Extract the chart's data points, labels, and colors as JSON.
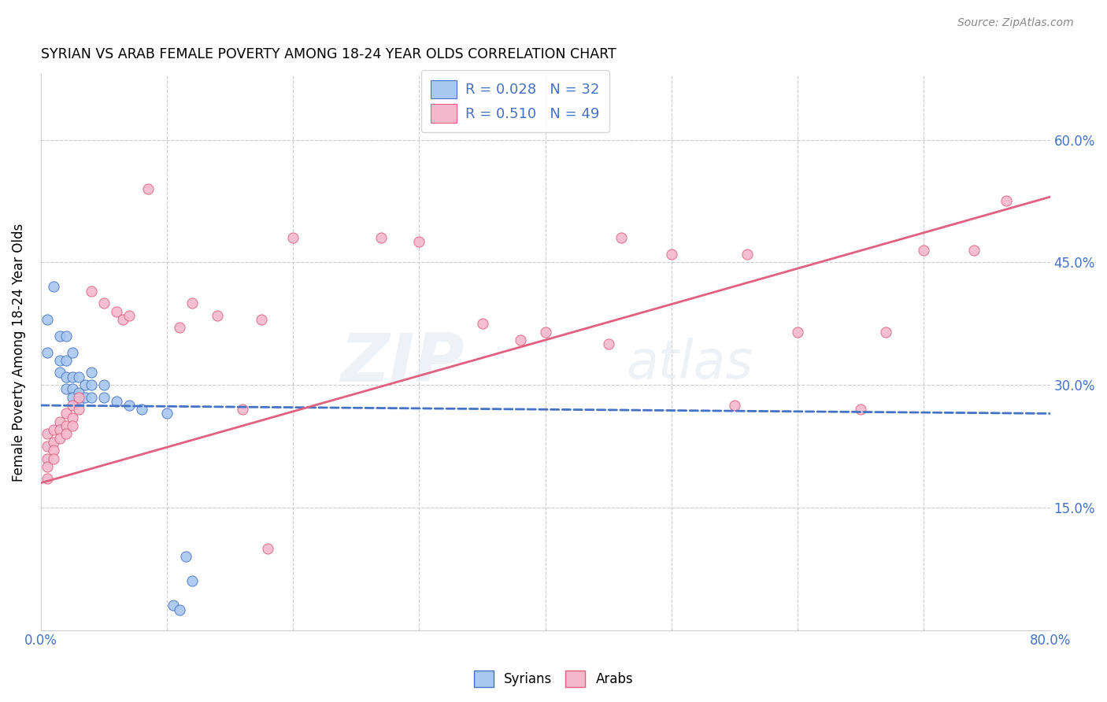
{
  "title": "SYRIAN VS ARAB FEMALE POVERTY AMONG 18-24 YEAR OLDS CORRELATION CHART",
  "source": "Source: ZipAtlas.com",
  "ylabel_label": "Female Poverty Among 18-24 Year Olds",
  "syrian_color": "#a8c8f0",
  "arab_color": "#f4b8cc",
  "syrian_line_color": "#4472c4",
  "arab_line_color": "#e06080",
  "watermark_top": "ZIP",
  "watermark_bot": "atlas",
  "syrians": [
    [
      0.5,
      38.0
    ],
    [
      0.5,
      34.0
    ],
    [
      1.0,
      42.0
    ],
    [
      1.5,
      36.0
    ],
    [
      1.5,
      33.0
    ],
    [
      1.5,
      31.5
    ],
    [
      2.0,
      36.0
    ],
    [
      2.0,
      33.0
    ],
    [
      2.0,
      31.0
    ],
    [
      2.0,
      29.5
    ],
    [
      2.5,
      34.0
    ],
    [
      2.5,
      31.0
    ],
    [
      2.5,
      29.5
    ],
    [
      2.5,
      28.5
    ],
    [
      3.0,
      31.0
    ],
    [
      3.0,
      29.0
    ],
    [
      3.0,
      28.0
    ],
    [
      3.5,
      30.0
    ],
    [
      3.5,
      28.5
    ],
    [
      4.0,
      31.5
    ],
    [
      4.0,
      30.0
    ],
    [
      4.0,
      28.5
    ],
    [
      5.0,
      30.0
    ],
    [
      5.0,
      28.5
    ],
    [
      6.0,
      28.0
    ],
    [
      7.0,
      27.5
    ],
    [
      8.0,
      27.0
    ],
    [
      10.0,
      26.5
    ],
    [
      10.5,
      3.0
    ],
    [
      11.0,
      2.5
    ],
    [
      11.5,
      9.0
    ],
    [
      12.0,
      6.0
    ]
  ],
  "arabs": [
    [
      0.5,
      24.0
    ],
    [
      0.5,
      22.5
    ],
    [
      0.5,
      21.0
    ],
    [
      0.5,
      20.0
    ],
    [
      0.5,
      18.5
    ],
    [
      1.0,
      24.5
    ],
    [
      1.0,
      23.0
    ],
    [
      1.0,
      22.0
    ],
    [
      1.0,
      21.0
    ],
    [
      1.5,
      25.5
    ],
    [
      1.5,
      24.5
    ],
    [
      1.5,
      23.5
    ],
    [
      2.0,
      26.5
    ],
    [
      2.0,
      25.0
    ],
    [
      2.0,
      24.0
    ],
    [
      2.5,
      27.5
    ],
    [
      2.5,
      26.0
    ],
    [
      2.5,
      25.0
    ],
    [
      3.0,
      28.5
    ],
    [
      3.0,
      27.0
    ],
    [
      4.0,
      41.5
    ],
    [
      5.0,
      40.0
    ],
    [
      6.0,
      39.0
    ],
    [
      6.5,
      38.0
    ],
    [
      7.0,
      38.5
    ],
    [
      8.5,
      54.0
    ],
    [
      11.0,
      37.0
    ],
    [
      12.0,
      40.0
    ],
    [
      14.0,
      38.5
    ],
    [
      16.0,
      27.0
    ],
    [
      17.5,
      38.0
    ],
    [
      18.0,
      10.0
    ],
    [
      20.0,
      48.0
    ],
    [
      27.0,
      48.0
    ],
    [
      30.0,
      47.5
    ],
    [
      35.0,
      37.5
    ],
    [
      38.0,
      35.5
    ],
    [
      40.0,
      36.5
    ],
    [
      45.0,
      35.0
    ],
    [
      46.0,
      48.0
    ],
    [
      50.0,
      46.0
    ],
    [
      55.0,
      27.5
    ],
    [
      56.0,
      46.0
    ],
    [
      60.0,
      36.5
    ],
    [
      65.0,
      27.0
    ],
    [
      67.0,
      36.5
    ],
    [
      70.0,
      46.5
    ],
    [
      74.0,
      46.5
    ],
    [
      76.5,
      52.5
    ]
  ],
  "sy_line": [
    0,
    80,
    27.5,
    26.5
  ],
  "ar_line": [
    0,
    80,
    18.0,
    53.0
  ],
  "xlim": [
    0,
    80
  ],
  "ylim": [
    0,
    68
  ],
  "y_tick_positions": [
    15,
    30,
    45,
    60
  ],
  "figsize": [
    14.06,
    8.92
  ],
  "dpi": 100
}
